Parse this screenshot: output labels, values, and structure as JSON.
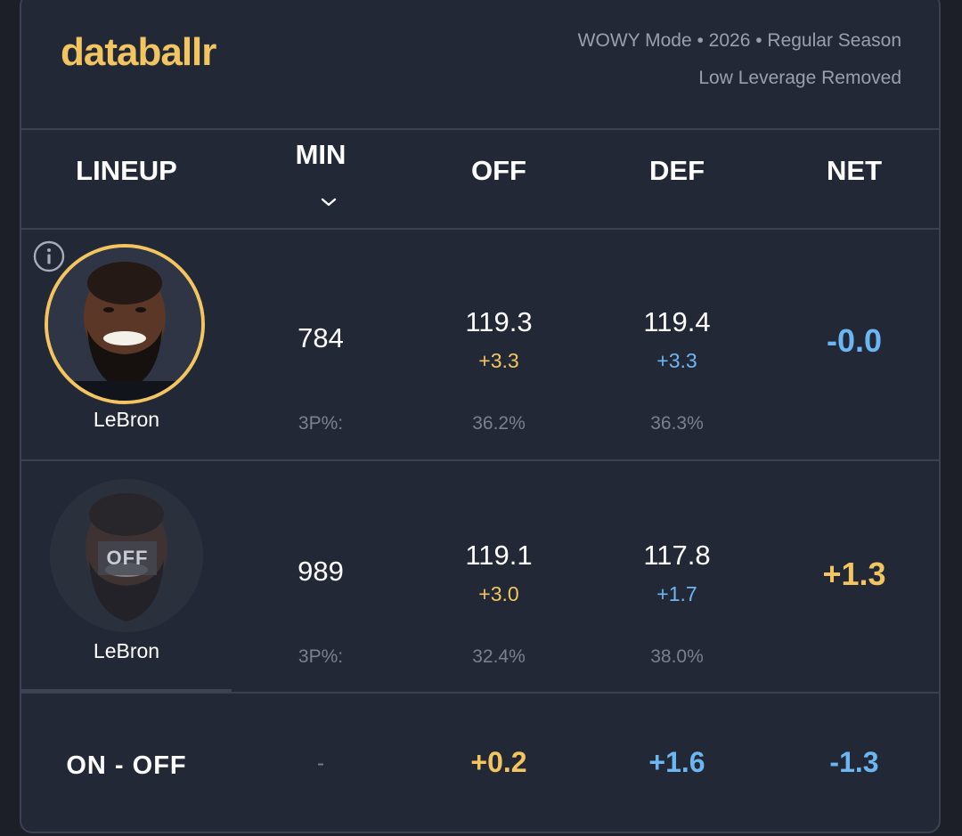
{
  "header": {
    "logo": "databallr",
    "meta_line1": "WOWY Mode • 2026 • Regular Season",
    "meta_line2": "Low Leverage Removed"
  },
  "columns": {
    "lineup": "LINEUP",
    "min": "MIN",
    "off": "OFF",
    "def": "DEF",
    "net": "NET"
  },
  "rows": [
    {
      "player": "LeBron",
      "status": "on",
      "min": "784",
      "off": "119.3",
      "off_delta": "+3.3",
      "def": "119.4",
      "def_delta": "+3.3",
      "net": "-0.0",
      "threep_label": "3P%:",
      "off_3p": "36.2%",
      "def_3p": "36.3%"
    },
    {
      "player": "LeBron",
      "status": "off",
      "off_badge": "OFF",
      "min": "989",
      "off": "119.1",
      "off_delta": "+3.0",
      "def": "117.8",
      "def_delta": "+1.7",
      "net": "+1.3",
      "threep_label": "3P%:",
      "off_3p": "32.4%",
      "def_3p": "38.0%"
    }
  ],
  "summary": {
    "label": "ON - OFF",
    "min": "-",
    "off": "+0.2",
    "def": "+1.6",
    "net": "-1.3"
  },
  "colors": {
    "accent_gold": "#f2c560",
    "accent_blue": "#6cb6f2",
    "background": "#232836"
  },
  "icons": {
    "info": "info-icon",
    "sort": "chevron-down-icon"
  }
}
